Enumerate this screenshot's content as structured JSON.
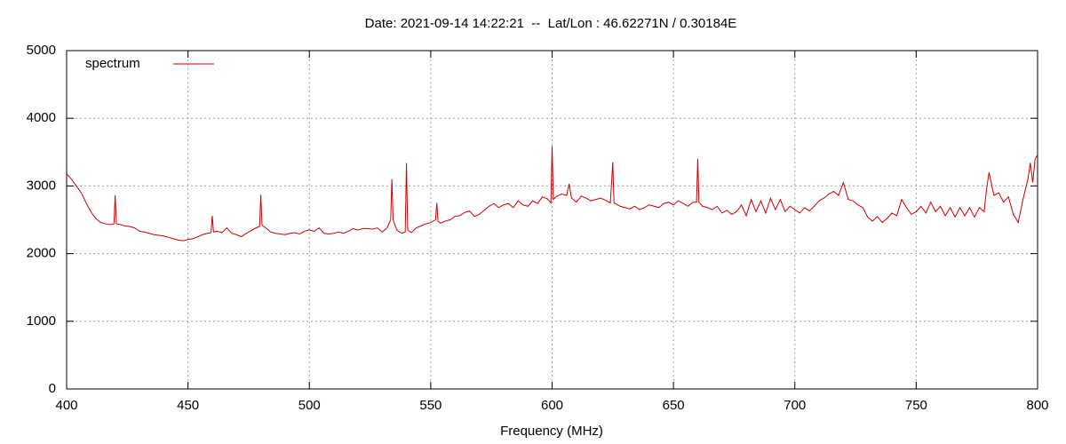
{
  "chart_data": {
    "type": "line",
    "title": "Date: 2021-09-14 14:22:21  --  Lat/Lon : 46.62271N / 0.30184E",
    "x_label": "Frequency (MHz)",
    "xlim": [
      400,
      800
    ],
    "xticks": [
      400,
      450,
      500,
      550,
      600,
      650,
      700,
      750,
      800
    ],
    "ylim": [
      0,
      5000
    ],
    "yticks": [
      0,
      1000,
      2000,
      3000,
      4000,
      5000
    ],
    "grid": true,
    "legend": "top-left",
    "x": [
      400,
      402,
      404,
      406,
      408,
      410,
      412,
      414,
      416,
      418,
      419.5,
      420,
      420.5,
      422,
      424,
      426,
      428,
      430,
      432,
      434,
      436,
      438,
      440,
      442,
      444,
      446,
      448,
      450,
      452,
      454,
      456,
      458,
      459.5,
      460,
      460.5,
      462,
      464,
      466,
      468,
      470,
      472,
      474,
      476,
      478,
      479.5,
      480,
      480.5,
      482,
      484,
      486,
      488,
      490,
      492,
      494,
      496,
      498,
      500,
      502,
      504,
      506,
      508,
      510,
      512,
      514,
      516,
      518,
      520,
      522,
      524,
      526,
      528,
      530,
      532,
      533.5,
      534,
      534.5,
      536,
      538,
      539.5,
      540,
      540.5,
      542,
      544,
      546,
      548,
      550,
      552,
      552.5,
      553,
      554,
      556,
      558,
      560,
      562,
      564,
      566,
      568,
      570,
      572,
      574,
      576,
      578,
      580,
      582,
      584,
      586,
      588,
      590,
      592,
      594,
      596,
      598,
      599.5,
      600,
      600.5,
      602,
      604,
      606,
      607,
      608,
      610,
      612,
      614,
      616,
      618,
      620,
      622,
      624,
      625,
      625.5,
      628,
      630,
      632,
      634,
      636,
      638,
      640,
      642,
      644,
      646,
      648,
      650,
      652,
      654,
      656,
      658,
      659.5,
      660,
      660.5,
      662,
      664,
      666,
      668,
      670,
      672,
      674,
      676,
      678,
      680,
      682,
      684,
      686,
      688,
      690,
      692,
      694,
      696,
      698,
      700,
      702,
      704,
      706,
      708,
      710,
      712,
      714,
      716,
      718,
      720,
      722,
      724,
      726,
      728,
      730,
      732,
      734,
      736,
      738,
      740,
      742,
      744,
      746,
      748,
      750,
      752,
      754,
      756,
      758,
      760,
      762,
      764,
      766,
      768,
      770,
      772,
      774,
      776,
      778,
      779,
      780,
      782,
      784,
      786,
      788,
      790,
      792,
      794,
      796,
      797,
      798,
      799,
      800
    ],
    "series": [
      {
        "name": "spectrum",
        "color": "#cc0000",
        "values": [
          3180,
          3100,
          3000,
          2900,
          2750,
          2620,
          2520,
          2460,
          2440,
          2430,
          2440,
          2860,
          2440,
          2430,
          2410,
          2400,
          2380,
          2330,
          2320,
          2300,
          2280,
          2270,
          2260,
          2240,
          2220,
          2200,
          2190,
          2210,
          2220,
          2250,
          2280,
          2300,
          2310,
          2560,
          2320,
          2330,
          2310,
          2380,
          2300,
          2280,
          2250,
          2300,
          2340,
          2380,
          2400,
          2870,
          2420,
          2380,
          2320,
          2300,
          2290,
          2280,
          2300,
          2310,
          2290,
          2330,
          2350,
          2330,
          2380,
          2300,
          2290,
          2300,
          2320,
          2300,
          2330,
          2370,
          2350,
          2370,
          2370,
          2360,
          2380,
          2320,
          2380,
          2500,
          3100,
          2500,
          2350,
          2300,
          2320,
          3340,
          2350,
          2310,
          2380,
          2410,
          2440,
          2460,
          2500,
          2750,
          2480,
          2450,
          2480,
          2500,
          2550,
          2560,
          2610,
          2630,
          2550,
          2580,
          2640,
          2700,
          2740,
          2680,
          2720,
          2740,
          2680,
          2780,
          2720,
          2700,
          2780,
          2740,
          2840,
          2810,
          2750,
          3590,
          2800,
          2850,
          2880,
          2860,
          3030,
          2820,
          2760,
          2850,
          2820,
          2780,
          2800,
          2820,
          2790,
          2750,
          3350,
          2750,
          2700,
          2680,
          2660,
          2700,
          2650,
          2680,
          2720,
          2700,
          2680,
          2740,
          2760,
          2720,
          2780,
          2740,
          2700,
          2760,
          2760,
          3400,
          2760,
          2700,
          2680,
          2650,
          2700,
          2600,
          2640,
          2580,
          2620,
          2720,
          2560,
          2800,
          2620,
          2780,
          2600,
          2820,
          2650,
          2800,
          2620,
          2700,
          2650,
          2600,
          2680,
          2630,
          2700,
          2780,
          2820,
          2880,
          2920,
          2860,
          3050,
          2800,
          2780,
          2720,
          2680,
          2540,
          2480,
          2550,
          2460,
          2520,
          2600,
          2560,
          2800,
          2680,
          2580,
          2620,
          2700,
          2600,
          2760,
          2620,
          2700,
          2560,
          2680,
          2540,
          2680,
          2560,
          2680,
          2540,
          2680,
          2620,
          2960,
          3200,
          2860,
          2900,
          2760,
          2840,
          2580,
          2460,
          2800,
          3100,
          3340,
          3050,
          3400,
          3460
        ]
      }
    ]
  }
}
